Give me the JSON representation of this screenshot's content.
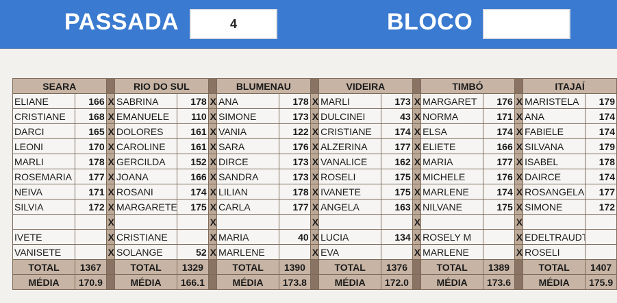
{
  "header": {
    "passada_label": "PASSADA",
    "passada_value": "4",
    "bloco_label": "BLOCO",
    "bloco_value": ""
  },
  "x_mark": "X",
  "total_label": "TOTAL",
  "media_label": "MÉDIA",
  "teams": [
    {
      "name": "SEARA",
      "players": [
        {
          "name": "ELIANE",
          "score": "166"
        },
        {
          "name": "CRISTIANE",
          "score": "168"
        },
        {
          "name": "DARCI",
          "score": "165"
        },
        {
          "name": "LEONI",
          "score": "170"
        },
        {
          "name": "MARLI",
          "score": "178"
        },
        {
          "name": "ROSEMARIA",
          "score": "177"
        },
        {
          "name": "NEIVA",
          "score": "171"
        },
        {
          "name": "SILVIA",
          "score": "172"
        },
        {
          "name": "",
          "score": ""
        },
        {
          "name": "IVETE",
          "score": ""
        },
        {
          "name": "VANISETE",
          "score": ""
        }
      ],
      "total": "1367",
      "media": "170.9"
    },
    {
      "name": "RIO DO SUL",
      "players": [
        {
          "name": "SABRINA",
          "score": "178"
        },
        {
          "name": "EMANUELE",
          "score": "110"
        },
        {
          "name": "DOLORES",
          "score": "161"
        },
        {
          "name": "CAROLINE",
          "score": "161"
        },
        {
          "name": "GERCILDA",
          "score": "152"
        },
        {
          "name": "JOANA",
          "score": "166"
        },
        {
          "name": "ROSANI",
          "score": "174"
        },
        {
          "name": "MARGARETE",
          "score": "175"
        },
        {
          "name": "",
          "score": ""
        },
        {
          "name": "CRISTIANE",
          "score": ""
        },
        {
          "name": "SOLANGE",
          "score": "52"
        }
      ],
      "total": "1329",
      "media": "166.1"
    },
    {
      "name": "BLUMENAU",
      "players": [
        {
          "name": "ANA",
          "score": "178"
        },
        {
          "name": "SIMONE",
          "score": "173"
        },
        {
          "name": "VANIA",
          "score": "122"
        },
        {
          "name": "SARA",
          "score": "176"
        },
        {
          "name": "DIRCE",
          "score": "173"
        },
        {
          "name": "SANDRA",
          "score": "173"
        },
        {
          "name": "LILIAN",
          "score": "178"
        },
        {
          "name": "CARLA",
          "score": "177"
        },
        {
          "name": "",
          "score": ""
        },
        {
          "name": "MARIA",
          "score": "40"
        },
        {
          "name": "MARLENE",
          "score": ""
        }
      ],
      "total": "1390",
      "media": "173.8"
    },
    {
      "name": "VIDEIRA",
      "players": [
        {
          "name": "MARLI",
          "score": "173"
        },
        {
          "name": "DULCINEI",
          "score": "43"
        },
        {
          "name": "CRISTIANE",
          "score": "174"
        },
        {
          "name": "ALZERINA",
          "score": "177"
        },
        {
          "name": "VANALICE",
          "score": "162"
        },
        {
          "name": "ROSELI",
          "score": "175"
        },
        {
          "name": "IVANETE",
          "score": "175"
        },
        {
          "name": "ANGELA",
          "score": "163"
        },
        {
          "name": "",
          "score": ""
        },
        {
          "name": "LUCIA",
          "score": "134"
        },
        {
          "name": "EVA",
          "score": ""
        }
      ],
      "total": "1376",
      "media": "172.0"
    },
    {
      "name": "TIMBÓ",
      "players": [
        {
          "name": "MARGARET",
          "score": "176"
        },
        {
          "name": "NORMA",
          "score": "171"
        },
        {
          "name": "ELSA",
          "score": "174"
        },
        {
          "name": "ELIETE",
          "score": "166"
        },
        {
          "name": "MARIA",
          "score": "177"
        },
        {
          "name": "MICHELE",
          "score": "176"
        },
        {
          "name": "MARLENE",
          "score": "174"
        },
        {
          "name": "NILVANE",
          "score": "175"
        },
        {
          "name": "",
          "score": ""
        },
        {
          "name": "ROSELY M",
          "score": ""
        },
        {
          "name": "MARLENE",
          "score": ""
        }
      ],
      "total": "1389",
      "media": "173.6"
    },
    {
      "name": "ITAJAÍ",
      "players": [
        {
          "name": "MARISTELA",
          "score": "179"
        },
        {
          "name": "ANA",
          "score": "174"
        },
        {
          "name": "FABIELE",
          "score": "174"
        },
        {
          "name": "SILVANA",
          "score": "179"
        },
        {
          "name": "ISABEL",
          "score": "178"
        },
        {
          "name": "DAIRCE",
          "score": "174"
        },
        {
          "name": "ROSANGELA",
          "score": "177"
        },
        {
          "name": "SIMONE",
          "score": "172"
        },
        {
          "name": "",
          "score": ""
        },
        {
          "name": "EDELTRAUDT",
          "score": ""
        },
        {
          "name": "ROSELI",
          "score": ""
        }
      ],
      "total": "1407",
      "media": "175.9"
    }
  ]
}
